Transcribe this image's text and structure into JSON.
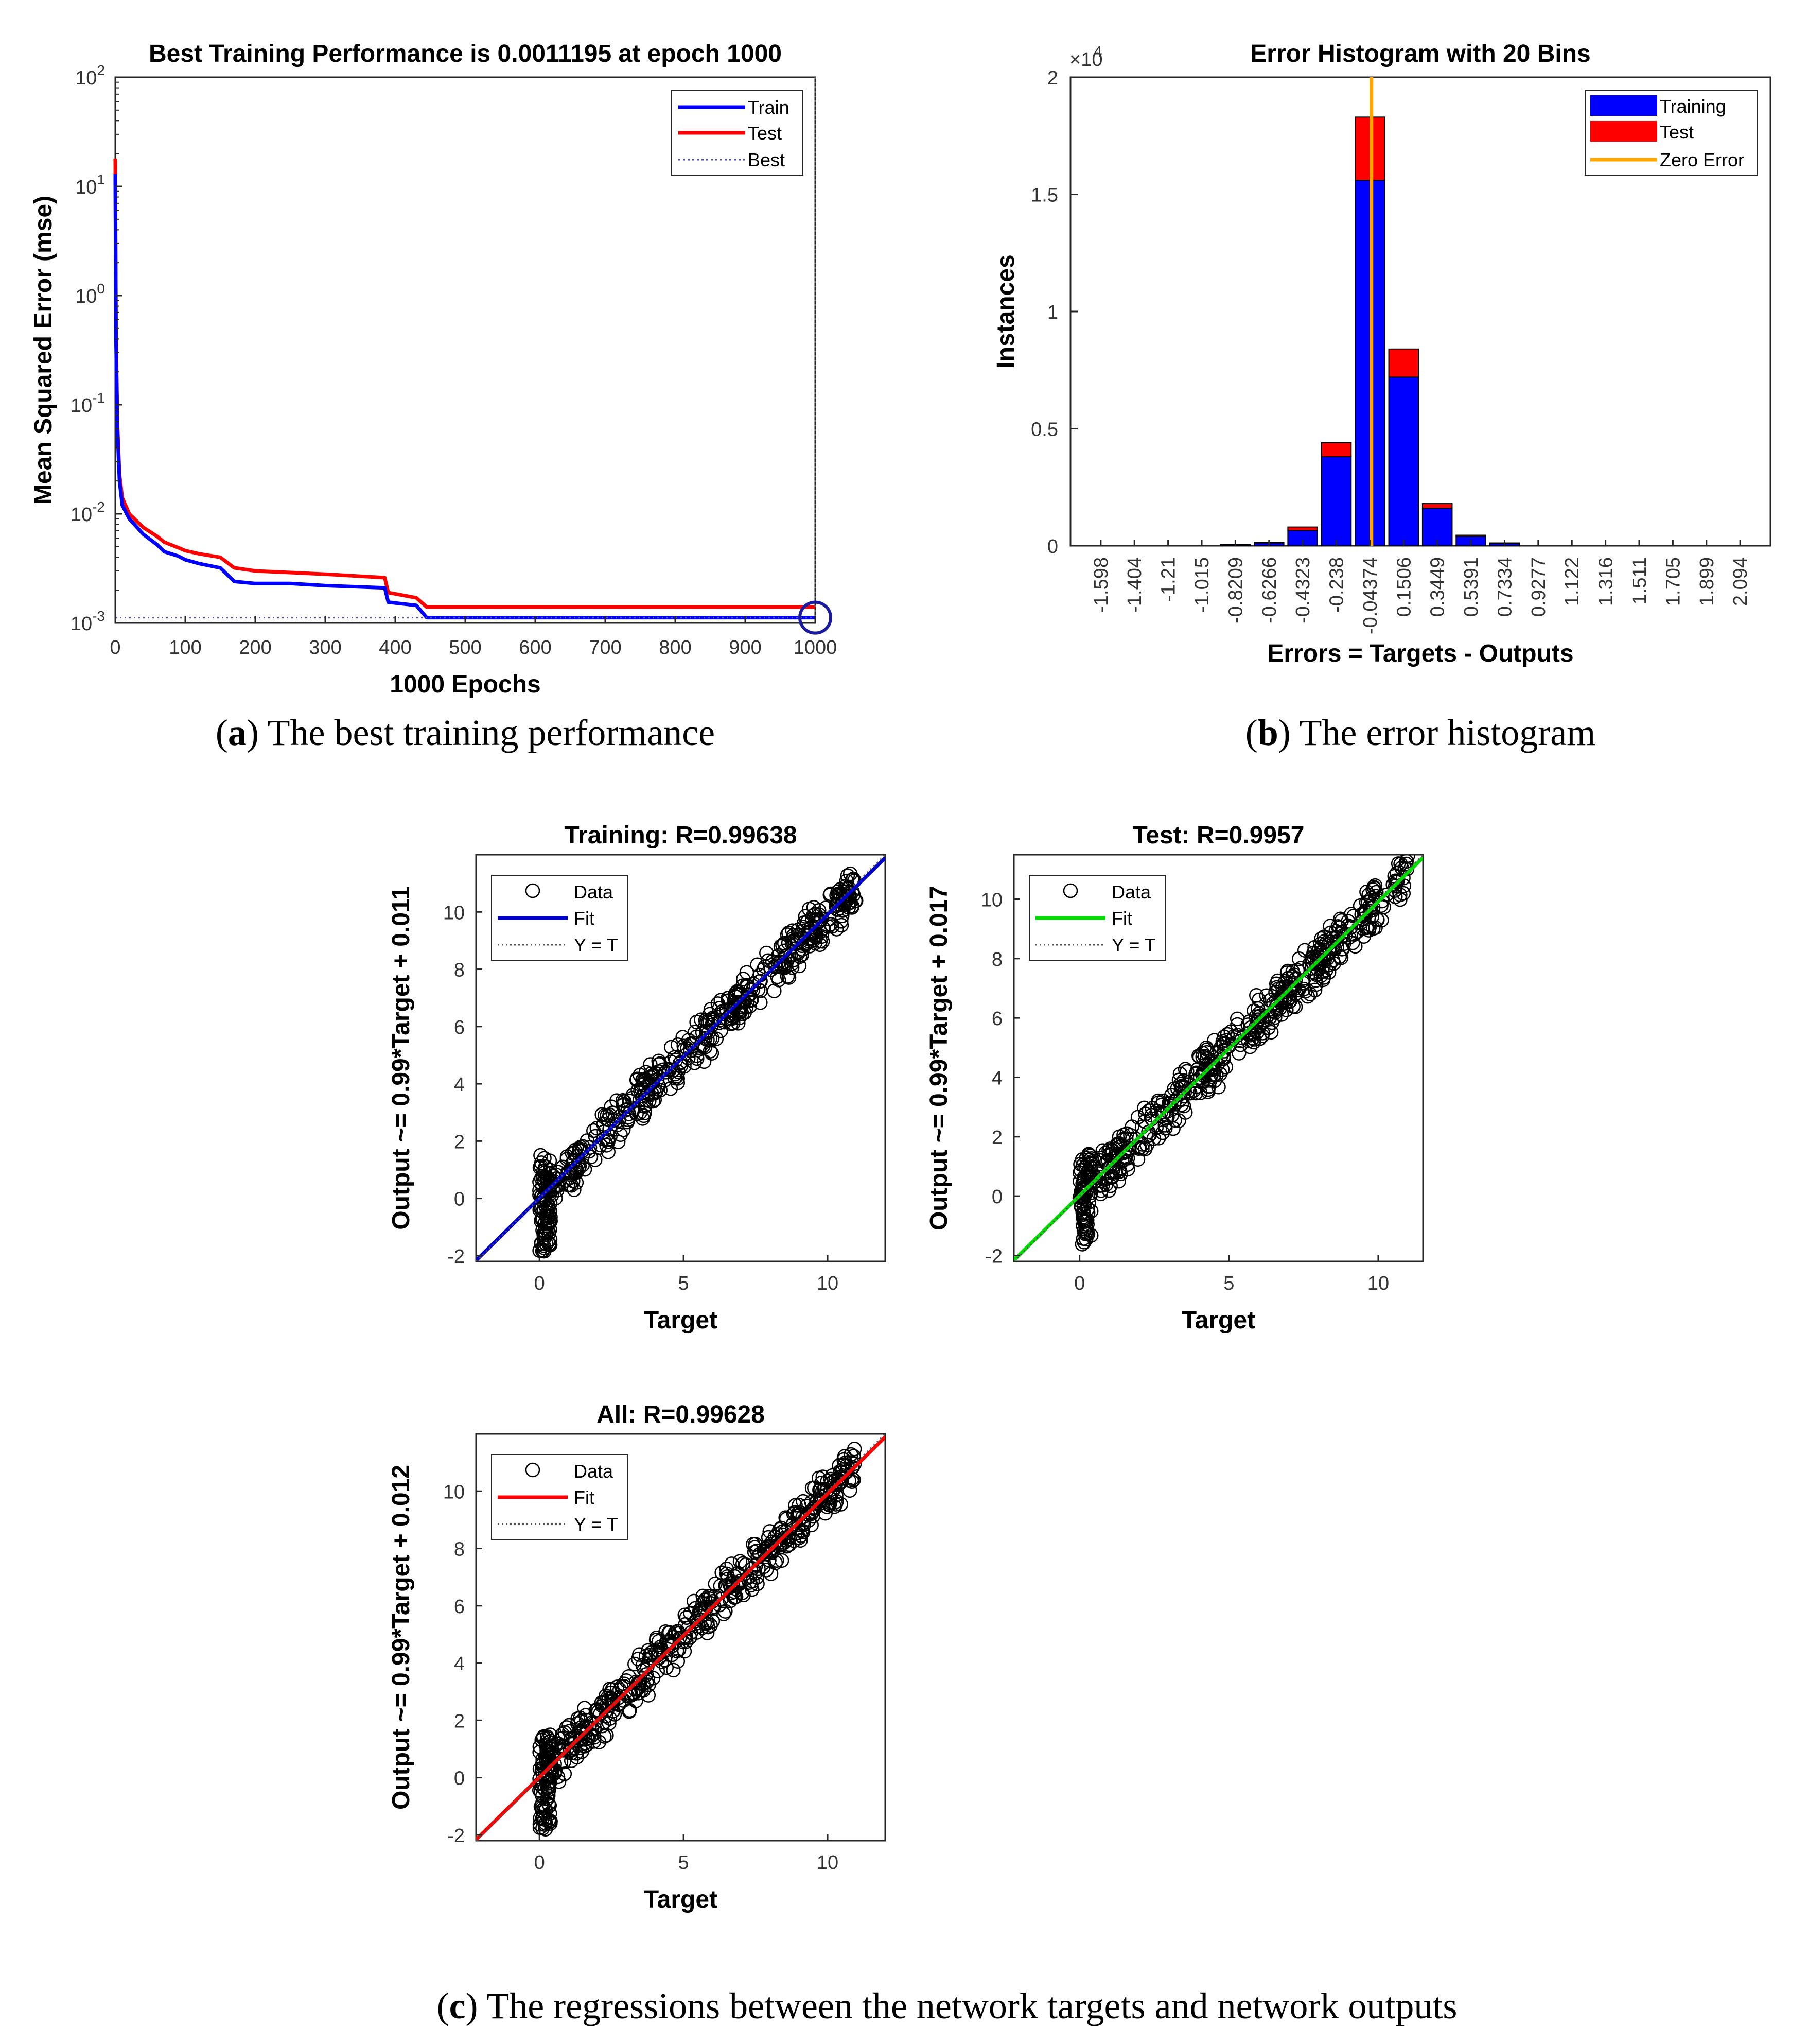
{
  "captions": {
    "a": {
      "label": "a",
      "text": "The best training performance"
    },
    "b": {
      "label": "b",
      "text": "The error histogram"
    },
    "c": {
      "label": "c",
      "text": "The regressions between the network targets and network outputs"
    }
  },
  "colors": {
    "train": "#0000ff",
    "test": "#ff0000",
    "zero": "#ffa500",
    "fit_training": "#0000cc",
    "fit_test": "#00dd00",
    "fit_all": "#ff0000"
  },
  "chart_data": [
    {
      "id": "performance",
      "type": "line",
      "title": "Best Training Performance is 0.0011195 at epoch 1000",
      "xlabel": "1000 Epochs",
      "ylabel": "Mean Squared Error  (mse)",
      "xlim": [
        0,
        1000
      ],
      "ylim_log10": [
        -3,
        2
      ],
      "yscale": "log",
      "xticks": [
        0,
        100,
        200,
        300,
        400,
        500,
        600,
        700,
        800,
        900,
        1000
      ],
      "yticks": [
        {
          "base": "10",
          "exp": "2"
        },
        {
          "base": "10",
          "exp": "1"
        },
        {
          "base": "10",
          "exp": "0"
        },
        {
          "base": "10",
          "exp": "-1"
        },
        {
          "base": "10",
          "exp": "-2"
        },
        {
          "base": "10",
          "exp": "-3"
        }
      ],
      "legend": [
        "Train",
        "Test",
        "Best"
      ],
      "best": {
        "epoch": 1000,
        "value": 0.0011195
      },
      "series": [
        {
          "name": "Train",
          "x": [
            0,
            1,
            3,
            6,
            10,
            20,
            40,
            60,
            70,
            90,
            100,
            120,
            150,
            170,
            200,
            250,
            300,
            385,
            390,
            430,
            445,
            500,
            700,
            900,
            1000
          ],
          "y": [
            13,
            0.4,
            0.06,
            0.02,
            0.012,
            0.009,
            0.0065,
            0.0052,
            0.0045,
            0.0041,
            0.0038,
            0.0035,
            0.0032,
            0.0024,
            0.0023,
            0.0023,
            0.0022,
            0.0021,
            0.00155,
            0.00145,
            0.00112,
            0.00112,
            0.00112,
            0.00112,
            0.00112
          ]
        },
        {
          "name": "Test",
          "x": [
            0,
            1,
            3,
            6,
            10,
            20,
            40,
            60,
            70,
            90,
            100,
            120,
            150,
            170,
            200,
            250,
            300,
            385,
            390,
            430,
            445,
            500,
            700,
            900,
            1000
          ],
          "y": [
            18,
            0.5,
            0.07,
            0.023,
            0.014,
            0.01,
            0.0075,
            0.0062,
            0.0055,
            0.0049,
            0.0046,
            0.0043,
            0.004,
            0.0032,
            0.003,
            0.0029,
            0.0028,
            0.0026,
            0.0019,
            0.0017,
            0.0014,
            0.0014,
            0.0014,
            0.0014,
            0.0014
          ]
        }
      ]
    },
    {
      "id": "histogram",
      "type": "bar",
      "title": "Error Histogram with 20 Bins",
      "xlabel": "Errors = Targets - Outputs",
      "ylabel": "Instances",
      "exponent_label": "×10",
      "exponent_power": "4",
      "ylim": [
        0,
        2
      ],
      "yticks": [
        0,
        0.5,
        1,
        1.5,
        2
      ],
      "categories": [
        "-1.598",
        "-1.404",
        "-1.21",
        "-1.015",
        "-0.8209",
        "-0.6266",
        "-0.4323",
        "-0.238",
        "-0.04374",
        "0.1506",
        "0.3449",
        "0.5391",
        "0.7334",
        "0.9277",
        "1.122",
        "1.316",
        "1.511",
        "1.705",
        "1.899",
        "2.094"
      ],
      "legend": [
        "Training",
        "Test",
        "Zero Error"
      ],
      "zero_error_bin": 8,
      "series": [
        {
          "name": "Training",
          "values": [
            0,
            0,
            0,
            0,
            0.005,
            0.012,
            0.065,
            0.38,
            1.56,
            0.72,
            0.16,
            0.04,
            0.01,
            0,
            0,
            0,
            0,
            0,
            0,
            0
          ]
        },
        {
          "name": "Test",
          "values": [
            0,
            0,
            0,
            0,
            0.001,
            0.003,
            0.015,
            0.06,
            0.27,
            0.12,
            0.02,
            0.005,
            0.002,
            0,
            0,
            0,
            0,
            0,
            0,
            0
          ]
        }
      ]
    },
    {
      "id": "reg_training",
      "type": "scatter",
      "title": "Training: R=0.99638",
      "xlabel": "Target",
      "ylabel": "Output ~= 0.99*Target + 0.011",
      "xlim": [
        -2.2,
        12
      ],
      "ylim": [
        -2.2,
        12
      ],
      "xticks": [
        0,
        5,
        10
      ],
      "yticks": [
        -2,
        0,
        2,
        4,
        6,
        8,
        10
      ],
      "legend": [
        "Data",
        "Fit",
        "Y = T"
      ],
      "fit": {
        "slope": 0.99,
        "intercept": 0.011
      },
      "seed": 11
    },
    {
      "id": "reg_test",
      "type": "scatter",
      "title": "Test: R=0.9957",
      "xlabel": "Target",
      "ylabel": "Output ~= 0.99*Target + 0.017",
      "xlim": [
        -2.2,
        11.5
      ],
      "ylim": [
        -2.2,
        11.5
      ],
      "xticks": [
        0,
        5,
        10
      ],
      "yticks": [
        -2,
        0,
        2,
        4,
        6,
        8,
        10
      ],
      "legend": [
        "Data",
        "Fit",
        "Y = T"
      ],
      "fit": {
        "slope": 0.99,
        "intercept": 0.017
      },
      "seed": 23
    },
    {
      "id": "reg_all",
      "type": "scatter",
      "title": "All: R=0.99628",
      "xlabel": "Target",
      "ylabel": "Output ~= 0.99*Target + 0.012",
      "xlim": [
        -2.2,
        12
      ],
      "ylim": [
        -2.2,
        12
      ],
      "xticks": [
        0,
        5,
        10
      ],
      "yticks": [
        -2,
        0,
        2,
        4,
        6,
        8,
        10
      ],
      "legend": [
        "Data",
        "Fit",
        "Y = T"
      ],
      "fit": {
        "slope": 0.99,
        "intercept": 0.012
      },
      "seed": 37
    }
  ]
}
